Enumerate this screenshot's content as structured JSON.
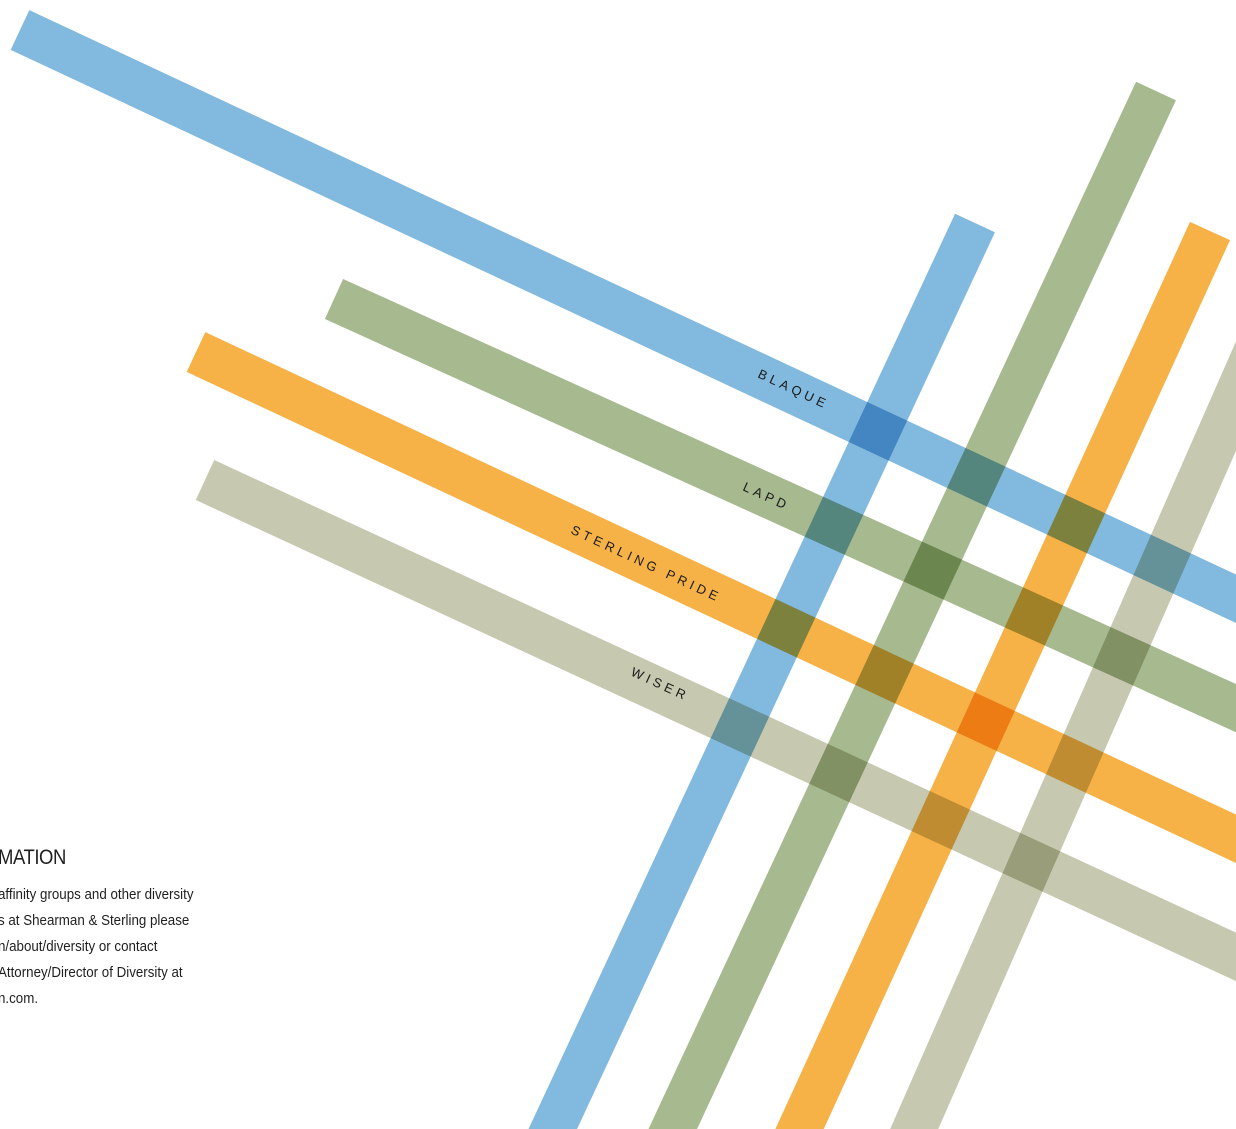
{
  "colors": {
    "blue": "#82b9de",
    "green": "#a6b98f",
    "orange": "#f6b247",
    "khaki": "#c6c8b0"
  },
  "bands": {
    "blaque": "BLAQUE",
    "lapd": "LAPD",
    "sterling_pride": "STERLING PRIDE",
    "wiser": "WISER"
  },
  "info": {
    "heading": "MATION",
    "lines": [
      " affinity groups and other diversity",
      "s at Shearman & Sterling please",
      "n/about/diversity or contact",
      "Attorney/Director of Diversity at",
      "n.com."
    ]
  }
}
